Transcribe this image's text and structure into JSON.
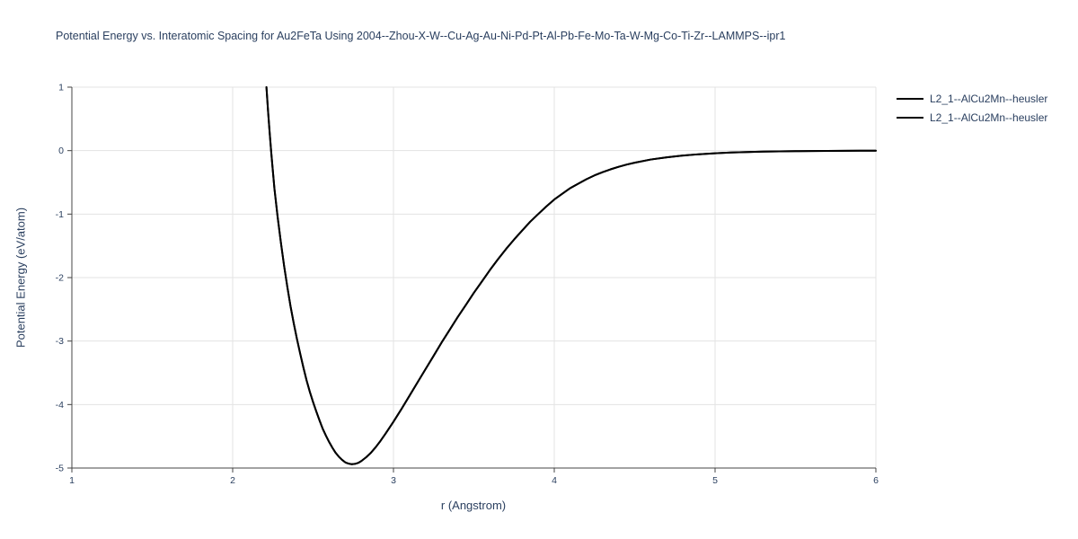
{
  "chart_data": {
    "type": "line",
    "title": "Potential Energy vs. Interatomic Spacing for Au2FeTa Using 2004--Zhou-X-W--Cu-Ag-Au-Ni-Pd-Pt-Al-Pb-Fe-Mo-Ta-W-Mg-Co-Ti-Zr--LAMMPS--ipr1",
    "xlabel": "r (Angstrom)",
    "ylabel": "Potential Energy (eV/atom)",
    "xlim": [
      1,
      6
    ],
    "ylim": [
      -5,
      1
    ],
    "x_ticks": [
      1,
      2,
      3,
      4,
      5,
      6
    ],
    "y_ticks": [
      -5,
      -4,
      -3,
      -2,
      -1,
      0,
      1
    ],
    "grid": true,
    "legend_position": "top-right-outside",
    "colors": {
      "line": "#000000",
      "grid": "#e3e3e3",
      "axis": "#444444",
      "text": "#2a3f5f"
    },
    "x": [
      2.21,
      2.22,
      2.23,
      2.24,
      2.25,
      2.26,
      2.28,
      2.3,
      2.32,
      2.34,
      2.36,
      2.38,
      2.4,
      2.42,
      2.44,
      2.46,
      2.48,
      2.5,
      2.52,
      2.54,
      2.56,
      2.58,
      2.6,
      2.62,
      2.64,
      2.66,
      2.68,
      2.7,
      2.72,
      2.74,
      2.76,
      2.78,
      2.8,
      2.83,
      2.86,
      2.89,
      2.92,
      2.95,
      3.0,
      3.05,
      3.1,
      3.15,
      3.2,
      3.25,
      3.3,
      3.35,
      3.4,
      3.45,
      3.5,
      3.55,
      3.6,
      3.65,
      3.7,
      3.75,
      3.8,
      3.85,
      3.9,
      3.95,
      4.0,
      4.05,
      4.1,
      4.15,
      4.2,
      4.25,
      4.3,
      4.35,
      4.4,
      4.45,
      4.5,
      4.6,
      4.7,
      4.8,
      4.9,
      5.0,
      5.1,
      5.2,
      5.3,
      5.4,
      5.5,
      5.6,
      5.7,
      5.8,
      5.9,
      6.0
    ],
    "series": [
      {
        "name": "L2_1--AlCu2Mn--heusler",
        "values": [
          1.0,
          0.62,
          0.28,
          -0.04,
          -0.33,
          -0.6,
          -1.05,
          -1.45,
          -1.82,
          -2.15,
          -2.45,
          -2.72,
          -2.97,
          -3.2,
          -3.42,
          -3.62,
          -3.8,
          -3.96,
          -4.11,
          -4.25,
          -4.38,
          -4.49,
          -4.59,
          -4.68,
          -4.76,
          -4.82,
          -4.87,
          -4.91,
          -4.93,
          -4.94,
          -4.935,
          -4.92,
          -4.89,
          -4.83,
          -4.76,
          -4.67,
          -4.57,
          -4.46,
          -4.27,
          -4.07,
          -3.86,
          -3.65,
          -3.44,
          -3.23,
          -3.02,
          -2.82,
          -2.62,
          -2.43,
          -2.24,
          -2.06,
          -1.88,
          -1.71,
          -1.55,
          -1.4,
          -1.26,
          -1.12,
          -1.0,
          -0.88,
          -0.77,
          -0.68,
          -0.59,
          -0.52,
          -0.45,
          -0.39,
          -0.34,
          -0.295,
          -0.255,
          -0.22,
          -0.19,
          -0.14,
          -0.105,
          -0.078,
          -0.057,
          -0.042,
          -0.03,
          -0.022,
          -0.016,
          -0.011,
          -0.008,
          -0.006,
          -0.004,
          -0.003,
          -0.002,
          -0.002
        ]
      },
      {
        "name": "L2_1--AlCu2Mn--heusler",
        "values": [
          1.0,
          0.62,
          0.28,
          -0.04,
          -0.33,
          -0.6,
          -1.05,
          -1.45,
          -1.82,
          -2.15,
          -2.45,
          -2.72,
          -2.97,
          -3.2,
          -3.42,
          -3.62,
          -3.8,
          -3.96,
          -4.11,
          -4.25,
          -4.38,
          -4.49,
          -4.59,
          -4.68,
          -4.76,
          -4.82,
          -4.87,
          -4.91,
          -4.93,
          -4.94,
          -4.935,
          -4.92,
          -4.89,
          -4.83,
          -4.76,
          -4.67,
          -4.57,
          -4.46,
          -4.27,
          -4.07,
          -3.86,
          -3.65,
          -3.44,
          -3.23,
          -3.02,
          -2.82,
          -2.62,
          -2.43,
          -2.24,
          -2.06,
          -1.88,
          -1.71,
          -1.55,
          -1.4,
          -1.26,
          -1.12,
          -1.0,
          -0.88,
          -0.77,
          -0.68,
          -0.59,
          -0.52,
          -0.45,
          -0.39,
          -0.34,
          -0.295,
          -0.255,
          -0.22,
          -0.19,
          -0.14,
          -0.105,
          -0.078,
          -0.057,
          -0.042,
          -0.03,
          -0.022,
          -0.016,
          -0.011,
          -0.008,
          -0.006,
          -0.004,
          -0.003,
          -0.002,
          -0.002
        ]
      }
    ]
  }
}
